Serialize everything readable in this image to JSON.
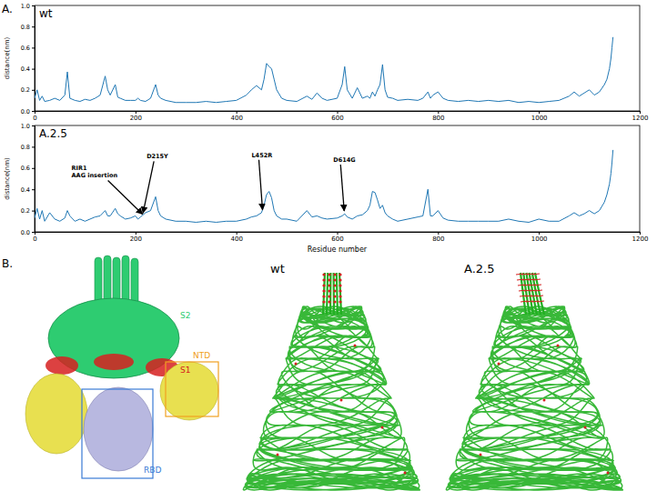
{
  "panel_labels": [
    "A.",
    "B."
  ],
  "chart_data": [
    {
      "type": "line",
      "title": "wt",
      "y_label": "distance(nm)",
      "x": [
        0,
        5,
        10,
        15,
        20,
        30,
        40,
        50,
        60,
        65,
        70,
        80,
        90,
        100,
        110,
        120,
        130,
        140,
        145,
        150,
        160,
        165,
        170,
        180,
        190,
        200,
        205,
        210,
        220,
        230,
        240,
        245,
        250,
        260,
        280,
        300,
        320,
        340,
        360,
        380,
        400,
        420,
        430,
        440,
        450,
        455,
        460,
        465,
        470,
        475,
        480,
        490,
        500,
        520,
        540,
        550,
        560,
        570,
        580,
        600,
        610,
        615,
        620,
        630,
        640,
        650,
        660,
        665,
        670,
        675,
        680,
        685,
        690,
        695,
        700,
        710,
        720,
        740,
        760,
        770,
        780,
        785,
        790,
        800,
        810,
        820,
        840,
        860,
        880,
        900,
        920,
        940,
        960,
        980,
        1000,
        1020,
        1040,
        1060,
        1070,
        1080,
        1090,
        1100,
        1110,
        1120,
        1130,
        1135,
        1140,
        1143,
        1145,
        1147
      ],
      "series": [
        {
          "name": "wt",
          "color": "#1f77b4",
          "values": [
            0.12,
            0.2,
            0.1,
            0.14,
            0.09,
            0.1,
            0.12,
            0.1,
            0.15,
            0.37,
            0.12,
            0.1,
            0.09,
            0.11,
            0.1,
            0.12,
            0.15,
            0.33,
            0.2,
            0.15,
            0.25,
            0.13,
            0.12,
            0.1,
            0.1,
            0.1,
            0.12,
            0.1,
            0.09,
            0.12,
            0.25,
            0.15,
            0.12,
            0.1,
            0.08,
            0.08,
            0.08,
            0.09,
            0.08,
            0.09,
            0.1,
            0.15,
            0.2,
            0.24,
            0.2,
            0.3,
            0.45,
            0.42,
            0.4,
            0.3,
            0.2,
            0.12,
            0.1,
            0.09,
            0.14,
            0.11,
            0.17,
            0.12,
            0.1,
            0.12,
            0.25,
            0.42,
            0.2,
            0.12,
            0.22,
            0.12,
            0.14,
            0.12,
            0.18,
            0.14,
            0.2,
            0.25,
            0.44,
            0.2,
            0.13,
            0.12,
            0.1,
            0.11,
            0.1,
            0.12,
            0.18,
            0.12,
            0.15,
            0.18,
            0.12,
            0.1,
            0.09,
            0.1,
            0.09,
            0.1,
            0.09,
            0.1,
            0.08,
            0.09,
            0.08,
            0.09,
            0.1,
            0.14,
            0.18,
            0.14,
            0.17,
            0.2,
            0.15,
            0.18,
            0.25,
            0.3,
            0.4,
            0.5,
            0.6,
            0.7
          ]
        }
      ],
      "xlim": [
        0,
        1200
      ],
      "xticks": [
        0,
        200,
        400,
        600,
        800,
        1000,
        1200
      ],
      "ylim": [
        0,
        1.0
      ],
      "yticks": [
        {
          "value": 0,
          "label": "0.0"
        },
        {
          "value": 0.2,
          "label": "0.2"
        },
        {
          "value": 0.4,
          "label": "0.4"
        },
        {
          "value": 0.6,
          "label": "0.6"
        },
        {
          "value": 0.8,
          "label": "0.8"
        },
        {
          "value": 1.0,
          "label": "1.0"
        }
      ]
    },
    {
      "type": "line",
      "title": "A.2.5",
      "y_label": "distance(nm)",
      "x_label": "Residue number",
      "x": [
        0,
        5,
        10,
        15,
        20,
        30,
        40,
        50,
        60,
        65,
        70,
        80,
        90,
        100,
        110,
        120,
        130,
        140,
        145,
        150,
        160,
        165,
        170,
        180,
        190,
        200,
        205,
        210,
        220,
        230,
        240,
        245,
        250,
        260,
        280,
        300,
        320,
        340,
        360,
        380,
        400,
        420,
        430,
        440,
        450,
        455,
        460,
        465,
        470,
        475,
        480,
        490,
        500,
        520,
        540,
        550,
        560,
        570,
        580,
        600,
        610,
        615,
        620,
        630,
        640,
        650,
        660,
        665,
        670,
        675,
        680,
        685,
        690,
        695,
        700,
        710,
        720,
        740,
        760,
        770,
        780,
        785,
        790,
        800,
        810,
        820,
        840,
        860,
        880,
        900,
        920,
        940,
        960,
        980,
        1000,
        1020,
        1040,
        1060,
        1070,
        1080,
        1090,
        1100,
        1110,
        1120,
        1130,
        1135,
        1140,
        1143,
        1145,
        1147
      ],
      "series": [
        {
          "name": "A.2.5",
          "color": "#1f77b4",
          "values": [
            0.13,
            0.22,
            0.12,
            0.2,
            0.1,
            0.18,
            0.12,
            0.1,
            0.13,
            0.2,
            0.15,
            0.1,
            0.12,
            0.1,
            0.12,
            0.14,
            0.15,
            0.2,
            0.15,
            0.15,
            0.22,
            0.17,
            0.15,
            0.12,
            0.13,
            0.15,
            0.12,
            0.14,
            0.18,
            0.2,
            0.33,
            0.2,
            0.15,
            0.12,
            0.1,
            0.1,
            0.09,
            0.1,
            0.09,
            0.1,
            0.1,
            0.12,
            0.14,
            0.15,
            0.18,
            0.25,
            0.35,
            0.38,
            0.32,
            0.2,
            0.15,
            0.12,
            0.12,
            0.1,
            0.2,
            0.14,
            0.15,
            0.13,
            0.12,
            0.13,
            0.15,
            0.17,
            0.14,
            0.12,
            0.15,
            0.16,
            0.2,
            0.25,
            0.38,
            0.37,
            0.3,
            0.22,
            0.25,
            0.18,
            0.15,
            0.12,
            0.1,
            0.12,
            0.14,
            0.15,
            0.4,
            0.15,
            0.15,
            0.2,
            0.13,
            0.11,
            0.1,
            0.1,
            0.1,
            0.1,
            0.1,
            0.12,
            0.1,
            0.09,
            0.12,
            0.1,
            0.1,
            0.15,
            0.18,
            0.15,
            0.17,
            0.2,
            0.17,
            0.2,
            0.28,
            0.35,
            0.45,
            0.55,
            0.65,
            0.77
          ]
        }
      ],
      "xlim": [
        0,
        1200
      ],
      "xticks": [
        0,
        200,
        400,
        600,
        800,
        1000,
        1200
      ],
      "ylim": [
        0,
        1.0
      ],
      "yticks": [
        {
          "value": 0,
          "label": "0.0"
        },
        {
          "value": 0.2,
          "label": "0.2"
        },
        {
          "value": 0.4,
          "label": "0.4"
        },
        {
          "value": 0.6,
          "label": "0.6"
        },
        {
          "value": 0.8,
          "label": "0.8"
        },
        {
          "value": 1.0,
          "label": "1.0"
        }
      ],
      "annotations": [
        {
          "text": "RIR1\nAAG insertion",
          "x": 214,
          "y": 0.15
        },
        {
          "text": "D215Y",
          "x": 215,
          "y": 0.16
        },
        {
          "text": "L452R",
          "x": 452,
          "y": 0.19
        },
        {
          "text": "D614G",
          "x": 614,
          "y": 0.18
        }
      ]
    }
  ],
  "structure_panel": {
    "domains": [
      {
        "label": "S2",
        "color": "#2ecc71"
      },
      {
        "label": "S1",
        "color": "#d62020"
      },
      {
        "label": "NTD",
        "color": "#f0a020"
      },
      {
        "label": "RBD",
        "color": "#3a7bd5"
      }
    ],
    "models": [
      "wt",
      "A.2.5"
    ]
  }
}
